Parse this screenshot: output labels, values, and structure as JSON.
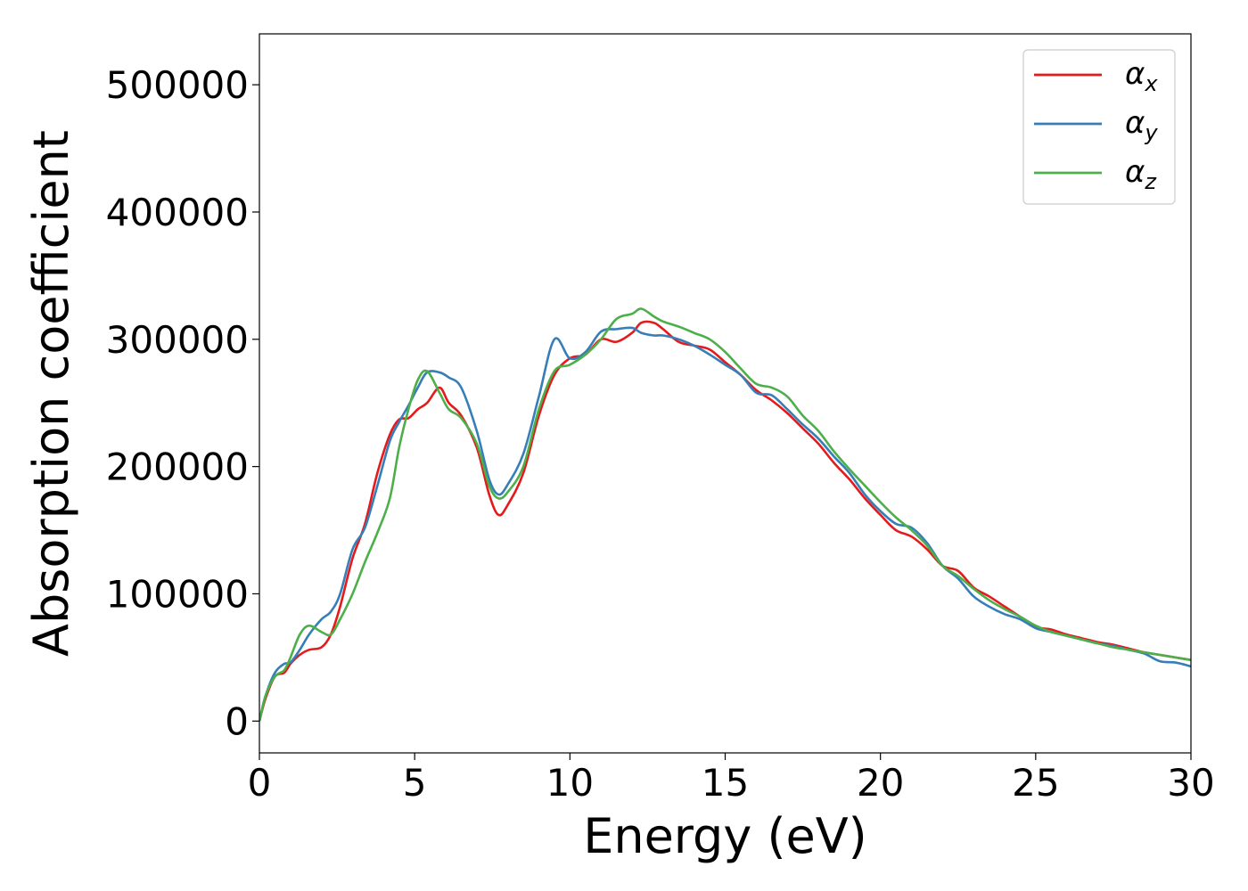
{
  "chart_data": {
    "type": "line",
    "title": "",
    "xlabel": "Energy (eV)",
    "ylabel": "Absorption coefficient",
    "xlim": [
      0,
      30
    ],
    "ylim": [
      -25000,
      540000
    ],
    "xticks": [
      0,
      5,
      10,
      15,
      20,
      25,
      30
    ],
    "xtick_labels": [
      "0",
      "5",
      "10",
      "15",
      "20",
      "25",
      "30"
    ],
    "yticks": [
      0,
      100000,
      200000,
      300000,
      400000,
      500000
    ],
    "ytick_labels": [
      "0",
      "100000",
      "200000",
      "300000",
      "400000",
      "500000"
    ],
    "grid": false,
    "legend_position": "top-right",
    "series": [
      {
        "name": "α_x",
        "legend_base": "α",
        "legend_sub": "x",
        "color": "#e41a1c",
        "x": [
          0,
          0.2,
          0.5,
          0.8,
          1.0,
          1.3,
          1.6,
          2.0,
          2.3,
          2.6,
          3.0,
          3.4,
          3.8,
          4.2,
          4.5,
          4.8,
          5.1,
          5.4,
          5.8,
          6.1,
          6.5,
          7.0,
          7.4,
          7.7,
          8.0,
          8.5,
          9.0,
          9.5,
          10.0,
          10.5,
          11.0,
          11.5,
          12.0,
          12.3,
          12.7,
          13.0,
          13.5,
          14.0,
          14.5,
          15.0,
          15.5,
          16.0,
          16.5,
          17.0,
          17.5,
          18.0,
          18.5,
          19.0,
          19.5,
          20.0,
          20.5,
          21.0,
          21.5,
          22.0,
          22.5,
          23.0,
          23.5,
          24.0,
          24.5,
          25.0,
          25.5,
          26.0,
          26.5,
          27.0,
          27.5,
          28.0,
          28.5,
          29.0,
          29.5,
          30.0
        ],
        "y": [
          0,
          18000,
          35000,
          38000,
          45000,
          52000,
          56000,
          58000,
          68000,
          90000,
          128000,
          155000,
          195000,
          225000,
          237000,
          238000,
          245000,
          250000,
          262000,
          250000,
          240000,
          215000,
          178000,
          162000,
          170000,
          195000,
          240000,
          272000,
          285000,
          288000,
          300000,
          298000,
          305000,
          313000,
          313000,
          308000,
          298000,
          295000,
          292000,
          282000,
          272000,
          260000,
          252000,
          242000,
          230000,
          218000,
          203000,
          190000,
          175000,
          162000,
          150000,
          145000,
          135000,
          122000,
          118000,
          105000,
          98000,
          90000,
          82000,
          74000,
          72000,
          68000,
          65000,
          62000,
          60000,
          57000,
          54000,
          52000,
          50000,
          48000
        ]
      },
      {
        "name": "α_y",
        "legend_base": "α",
        "legend_sub": "y",
        "color": "#377eb8",
        "x": [
          0,
          0.2,
          0.5,
          0.8,
          1.0,
          1.3,
          1.6,
          2.0,
          2.3,
          2.6,
          3.0,
          3.4,
          3.8,
          4.2,
          4.5,
          4.8,
          5.1,
          5.4,
          5.8,
          6.1,
          6.5,
          7.0,
          7.4,
          7.7,
          8.0,
          8.5,
          9.0,
          9.5,
          10.0,
          10.5,
          11.0,
          11.5,
          12.0,
          12.3,
          12.7,
          13.0,
          13.5,
          14.0,
          14.5,
          15.0,
          15.5,
          16.0,
          16.5,
          17.0,
          17.5,
          18.0,
          18.5,
          19.0,
          19.5,
          20.0,
          20.5,
          21.0,
          21.5,
          22.0,
          22.5,
          23.0,
          23.5,
          24.0,
          24.5,
          25.0,
          25.5,
          26.0,
          26.5,
          27.0,
          27.5,
          28.0,
          28.5,
          29.0,
          29.5,
          30.0
        ],
        "y": [
          0,
          20000,
          38000,
          45000,
          46000,
          56000,
          68000,
          80000,
          86000,
          100000,
          135000,
          152000,
          185000,
          220000,
          235000,
          248000,
          262000,
          274000,
          274000,
          270000,
          262000,
          228000,
          190000,
          178000,
          186000,
          210000,
          255000,
          300000,
          285000,
          290000,
          306000,
          308000,
          309000,
          305000,
          303000,
          303000,
          300000,
          295000,
          288000,
          280000,
          272000,
          258000,
          256000,
          245000,
          233000,
          222000,
          208000,
          195000,
          178000,
          165000,
          155000,
          152000,
          140000,
          122000,
          112000,
          98000,
          90000,
          84000,
          80000,
          73000,
          70000,
          67000,
          64000,
          61000,
          59000,
          56000,
          53000,
          47000,
          46000,
          43000
        ]
      },
      {
        "name": "α_z",
        "legend_base": "α",
        "legend_sub": "z",
        "color": "#4daf4a",
        "x": [
          0,
          0.2,
          0.5,
          0.8,
          1.0,
          1.3,
          1.6,
          2.0,
          2.3,
          2.6,
          3.0,
          3.4,
          3.8,
          4.2,
          4.5,
          4.8,
          5.1,
          5.4,
          5.8,
          6.1,
          6.5,
          7.0,
          7.4,
          7.7,
          8.0,
          8.5,
          9.0,
          9.5,
          10.0,
          10.5,
          11.0,
          11.5,
          12.0,
          12.3,
          12.7,
          13.0,
          13.5,
          14.0,
          14.5,
          15.0,
          15.5,
          16.0,
          16.5,
          17.0,
          17.5,
          18.0,
          18.5,
          19.0,
          19.5,
          20.0,
          20.5,
          21.0,
          21.5,
          22.0,
          22.5,
          23.0,
          23.5,
          24.0,
          24.5,
          25.0,
          25.5,
          26.0,
          26.5,
          27.0,
          27.5,
          28.0,
          28.5,
          29.0,
          29.5,
          30.0
        ],
        "y": [
          0,
          20000,
          35000,
          40000,
          50000,
          68000,
          75000,
          70000,
          68000,
          80000,
          100000,
          125000,
          148000,
          175000,
          215000,
          245000,
          268000,
          275000,
          258000,
          245000,
          238000,
          218000,
          185000,
          175000,
          180000,
          200000,
          245000,
          275000,
          280000,
          288000,
          300000,
          316000,
          320000,
          324000,
          318000,
          314000,
          310000,
          305000,
          300000,
          290000,
          277000,
          265000,
          262000,
          255000,
          240000,
          228000,
          212000,
          198000,
          185000,
          172000,
          160000,
          150000,
          138000,
          122000,
          114000,
          104000,
          95000,
          88000,
          82000,
          75000,
          70000,
          67000,
          64000,
          61000,
          58000,
          56000,
          54000,
          52000,
          50000,
          48000
        ]
      }
    ]
  }
}
